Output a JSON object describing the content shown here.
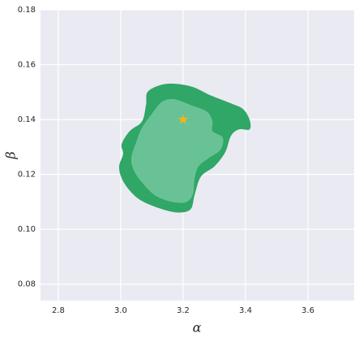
{
  "chart_data": {
    "type": "contour",
    "xlabel": "α",
    "ylabel": "β",
    "xlim": [
      2.743,
      3.748
    ],
    "ylim": [
      0.074,
      0.18
    ],
    "xticks": [
      2.8,
      {
        "value": 3,
        "label": "3.0"
      },
      3.2,
      3.4,
      3.6
    ],
    "yticks": [
      0.08,
      {
        "value": 0.1,
        "label": "0.10"
      },
      0.12,
      0.14,
      0.16,
      0.18
    ],
    "grid": true,
    "background": "#eaeaf2",
    "series": [
      {
        "color": "#30a667",
        "x": [
          3.088,
          3.146,
          3.224,
          3.288,
          3.353,
          3.392,
          3.413,
          3.413,
          3.379,
          3.353,
          3.335,
          3.301,
          3.257,
          3.237,
          3.224,
          3.185,
          3.133,
          3.068,
          3.029,
          3.003,
          2.995,
          3.008,
          3.003,
          3.029,
          3.068,
          3.081
        ],
        "y": [
          0.1503,
          0.153,
          0.1521,
          0.1488,
          0.1459,
          0.1438,
          0.1399,
          0.1364,
          0.1364,
          0.134,
          0.1281,
          0.123,
          0.1192,
          0.1126,
          0.1073,
          0.1061,
          0.1073,
          0.1103,
          0.1141,
          0.1186,
          0.123,
          0.1275,
          0.131,
          0.1358,
          0.1393,
          0.1453
        ]
      },
      {
        "color": "#69c295",
        "x": [
          3.133,
          3.172,
          3.224,
          3.276,
          3.294,
          3.294,
          3.327,
          3.32,
          3.283,
          3.25,
          3.237,
          3.231,
          3.205,
          3.153,
          3.107,
          3.068,
          3.042,
          3.034,
          3.05,
          3.068,
          3.101
        ],
        "y": [
          0.1465,
          0.1474,
          0.1453,
          0.1429,
          0.1393,
          0.1358,
          0.1334,
          0.129,
          0.126,
          0.123,
          0.1186,
          0.1126,
          0.1097,
          0.1103,
          0.1126,
          0.1171,
          0.1215,
          0.126,
          0.1319,
          0.137,
          0.1423
        ]
      }
    ],
    "marker": {
      "x": 3.2,
      "y": 0.14,
      "color": "#f5b418"
    }
  }
}
